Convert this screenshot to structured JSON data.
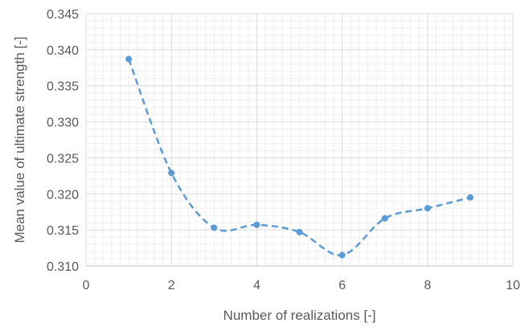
{
  "chart_data": {
    "type": "line",
    "title": "",
    "xlabel": "Number of realizations [-]",
    "ylabel": "Mean value of ultimate strength [-]",
    "xlim": [
      0,
      10
    ],
    "ylim": [
      0.31,
      0.345
    ],
    "x_ticks": [
      "0",
      "2",
      "4",
      "6",
      "8",
      "10"
    ],
    "y_ticks": [
      "0.310",
      "0.315",
      "0.320",
      "0.325",
      "0.330",
      "0.335",
      "0.340",
      "0.345"
    ],
    "grid": true,
    "legend": "none",
    "line_style": "dashed-smooth",
    "series": [
      {
        "color": "#5b9bd5",
        "x": [
          1,
          2,
          3,
          4,
          5,
          6,
          7,
          8,
          9
        ],
        "y": [
          0.3387,
          0.3229,
          0.3153,
          0.3157,
          0.3147,
          0.3115,
          0.3166,
          0.318,
          0.3195
        ]
      }
    ]
  }
}
